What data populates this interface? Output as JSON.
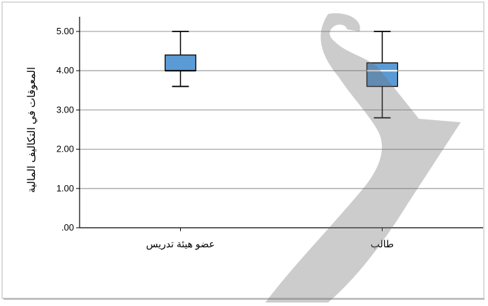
{
  "chart_data": {
    "type": "box",
    "title": "",
    "ylabel": "المعوقات في التكاليف المالية",
    "xlabel": "",
    "ylim": [
      0,
      5
    ],
    "yticks": [
      {
        "value": 0,
        "label": ".00"
      },
      {
        "value": 1,
        "label": "1.00"
      },
      {
        "value": 2,
        "label": "2.00"
      },
      {
        "value": 3,
        "label": "3.00"
      },
      {
        "value": 4,
        "label": "4.00"
      },
      {
        "value": 5,
        "label": "5.00"
      }
    ],
    "grid": true,
    "box_color": "#5b9bd5",
    "categories": [
      "عضو هيئة تدريس",
      "طالب"
    ],
    "boxes": [
      {
        "category": "عضو هيئة تدريس",
        "min": 3.6,
        "q1": 4.0,
        "median": 4.0,
        "q3": 4.4,
        "max": 5.0
      },
      {
        "category": "طالب",
        "min": 2.8,
        "q1": 3.6,
        "median": 4.0,
        "q3": 4.2,
        "max": 5.0
      }
    ]
  }
}
